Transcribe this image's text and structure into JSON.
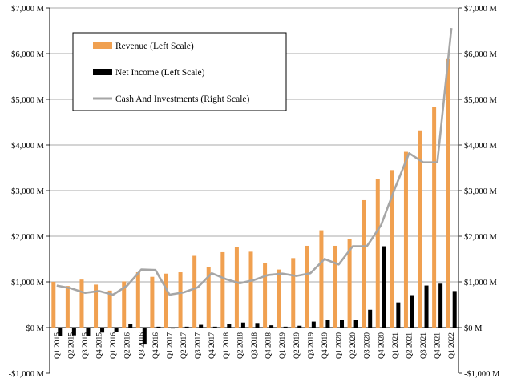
{
  "chart_data": {
    "type": "bar",
    "categories": [
      "Q1 2015",
      "Q2 2015",
      "Q3 2015",
      "Q4 2015",
      "Q1 2016",
      "Q2 2016",
      "Q3 2016",
      "Q4 2016",
      "Q1 2017",
      "Q2 2017",
      "Q3 2017",
      "Q4 2017",
      "Q1 2018",
      "Q2 2018",
      "Q3 2018",
      "Q4 2018",
      "Q1 2019",
      "Q2 2019",
      "Q3 2019",
      "Q4 2019",
      "Q1 2020",
      "Q2 2020",
      "Q3 2020",
      "Q4 2020",
      "Q1 2021",
      "Q2 2021",
      "Q3 2021",
      "Q4 2021",
      "Q1 2022"
    ],
    "left_axis": {
      "ylim": [
        -1000,
        7000
      ],
      "ticks": [
        -1000,
        0,
        1000,
        2000,
        3000,
        4000,
        5000,
        6000,
        7000
      ],
      "tick_labels": [
        "-$1,000 M",
        "$0 M",
        "$1,000 M",
        "$2,000 M",
        "$3,000 M",
        "$4,000 M",
        "$5,000 M",
        "$6,000 M",
        "$7,000 M"
      ]
    },
    "right_axis": {
      "ylim": [
        -1000,
        7000
      ],
      "ticks": [
        -1000,
        0,
        1000,
        2000,
        3000,
        4000,
        5000,
        6000,
        7000
      ],
      "tick_labels": [
        "-$1,000 M",
        "$0 M",
        "$1,000 M",
        "$2,000 M",
        "$3,000 M",
        "$4,000 M",
        "$5,000 M",
        "$6,000 M",
        "$7,000 M"
      ]
    },
    "grid": true,
    "legend_position": "top-left",
    "series": [
      {
        "name": "Revenue (Left Scale)",
        "type": "bar",
        "axis": "left",
        "color": "#F0A050",
        "values": [
          1001,
          910,
          1050,
          940,
          810,
          1010,
          1210,
          1110,
          1180,
          1210,
          1570,
          1330,
          1650,
          1760,
          1660,
          1420,
          1270,
          1520,
          1790,
          2130,
          1790,
          1930,
          2790,
          3250,
          3450,
          3850,
          4320,
          4830,
          5880
        ]
      },
      {
        "name": "Net Income (Left Scale)",
        "type": "bar",
        "axis": "left",
        "color": "#000000",
        "values": [
          -180,
          -170,
          -190,
          -110,
          -100,
          70,
          -370,
          20,
          -20,
          20,
          60,
          20,
          70,
          110,
          100,
          50,
          20,
          40,
          130,
          160,
          160,
          170,
          390,
          1780,
          550,
          710,
          920,
          960,
          800
        ]
      },
      {
        "name": "Cash And Investments (Right Scale)",
        "type": "line",
        "axis": "right",
        "color": "#A6A6A6",
        "values": [
          920,
          860,
          760,
          800,
          720,
          920,
          1270,
          1260,
          720,
          770,
          880,
          1190,
          1060,
          970,
          1040,
          1150,
          1180,
          1130,
          1190,
          1500,
          1380,
          1780,
          1780,
          2240,
          3060,
          3820,
          3620,
          3620,
          6560
        ]
      }
    ]
  }
}
